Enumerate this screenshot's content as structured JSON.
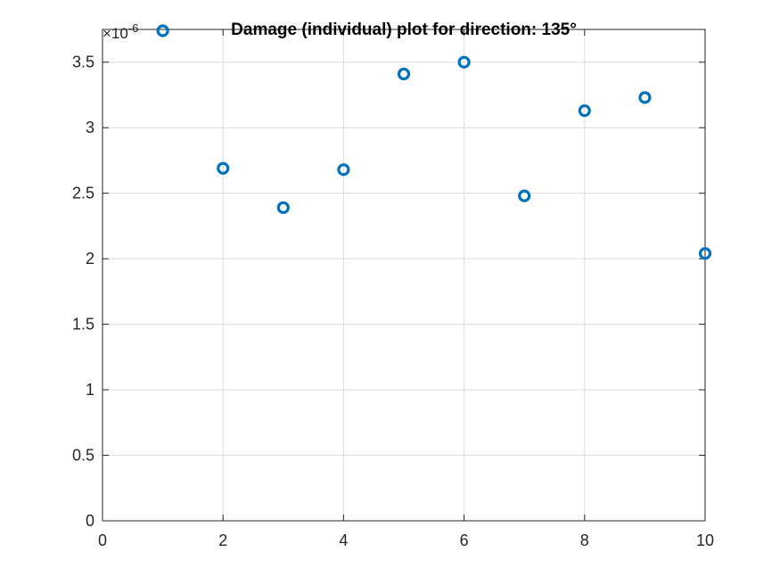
{
  "chart_data": {
    "type": "scatter",
    "title": "Damage (individual) plot for direction: 135°",
    "xlabel": "",
    "ylabel": "",
    "exponent_label": {
      "base": "×10",
      "power": "-6"
    },
    "xlim": [
      0,
      10
    ],
    "ylim": [
      0,
      3.75
    ],
    "x_ticks": [
      0,
      2,
      4,
      6,
      8,
      10
    ],
    "x_tick_labels": [
      "0",
      "2",
      "4",
      "6",
      "8",
      "10"
    ],
    "y_ticks": [
      0,
      0.5,
      1,
      1.5,
      2,
      2.5,
      3,
      3.5
    ],
    "y_tick_labels": [
      "0",
      "0.5",
      "1",
      "1.5",
      "2",
      "2.5",
      "3",
      "3.5"
    ],
    "grid": true,
    "marker": "open-circle",
    "series": [
      {
        "x": [
          1,
          2,
          3,
          4,
          5,
          6,
          7,
          8,
          9,
          10
        ],
        "y": [
          3.74,
          2.69,
          2.39,
          2.68,
          3.41,
          3.5,
          2.48,
          3.13,
          3.23,
          2.04
        ],
        "color": "#0072BD"
      }
    ]
  }
}
